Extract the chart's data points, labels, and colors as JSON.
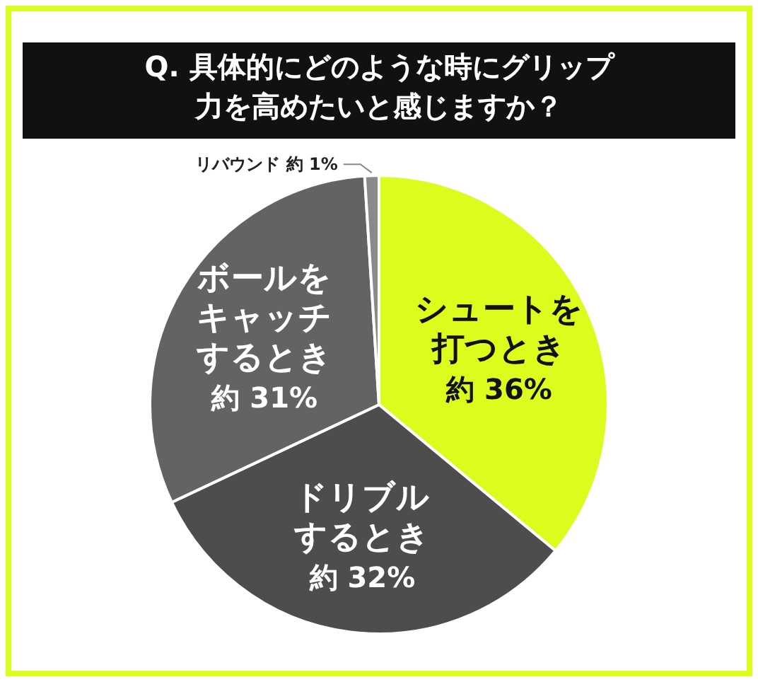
{
  "chart_data": {
    "type": "pie",
    "title": "Q. 具体的にどのような時にグリップ力を高めたいと感じますか？",
    "categories": [
      "シュートを打つとき",
      "ドリブルするとき",
      "ボールをキャッチするとき",
      "リバウンド"
    ],
    "values": [
      36,
      32,
      31,
      1
    ],
    "colors": [
      "#dcfc1e",
      "#4d4d4d",
      "#636363",
      "#8a8a8a"
    ],
    "value_labels": [
      "約 36%",
      "約 32%",
      "約 31%",
      "約 1%"
    ]
  }
}
